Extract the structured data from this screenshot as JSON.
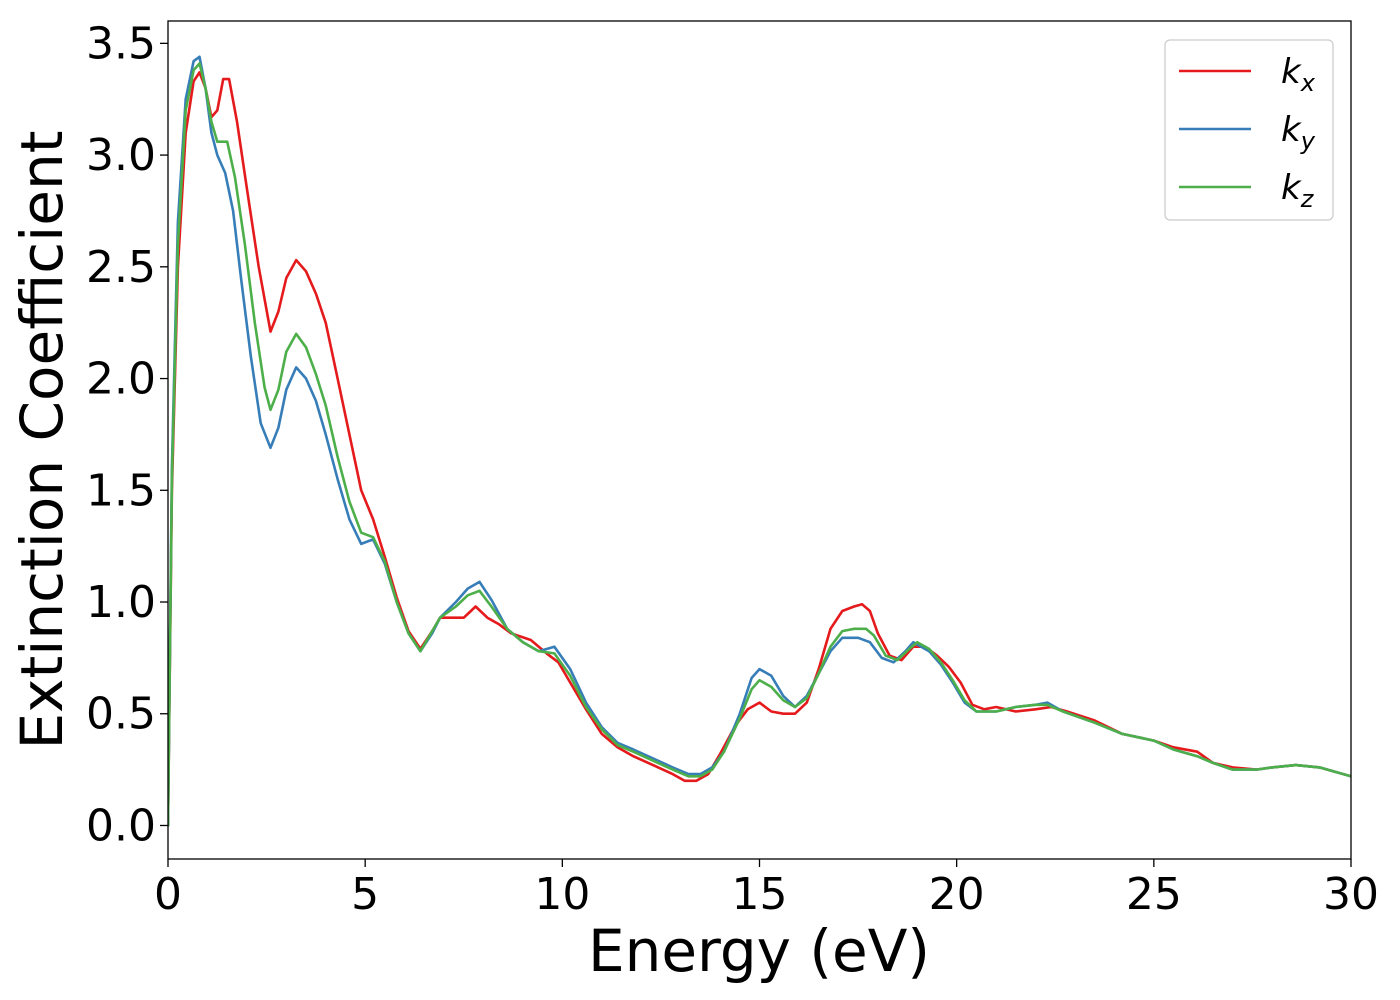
{
  "chart_data": {
    "type": "line",
    "title": "",
    "xlabel": "Energy (eV)",
    "ylabel": "Extinction Coefficient",
    "xlim": [
      0,
      30
    ],
    "ylim": [
      -0.15,
      3.6
    ],
    "xticks": [
      0,
      5,
      10,
      15,
      20,
      25,
      30
    ],
    "xtick_labels": [
      "0",
      "5",
      "10",
      "15",
      "20",
      "25",
      "30"
    ],
    "yticks": [
      0.0,
      0.5,
      1.0,
      1.5,
      2.0,
      2.5,
      3.0,
      3.5
    ],
    "ytick_labels": [
      "0.0",
      "0.5",
      "1.0",
      "1.5",
      "2.0",
      "2.5",
      "3.0",
      "3.5"
    ],
    "grid": false,
    "legend_position": "top-right",
    "series": [
      {
        "name": "k",
        "subscript": "x",
        "color": "#e41a1c",
        "points": [
          [
            0,
            0
          ],
          [
            0.1,
            1.5
          ],
          [
            0.25,
            2.5
          ],
          [
            0.45,
            3.1
          ],
          [
            0.65,
            3.33
          ],
          [
            0.8,
            3.37
          ],
          [
            0.95,
            3.3
          ],
          [
            1.1,
            3.17
          ],
          [
            1.25,
            3.2
          ],
          [
            1.4,
            3.34
          ],
          [
            1.55,
            3.34
          ],
          [
            1.75,
            3.15
          ],
          [
            2.0,
            2.85
          ],
          [
            2.3,
            2.5
          ],
          [
            2.6,
            2.21
          ],
          [
            2.8,
            2.3
          ],
          [
            3.0,
            2.45
          ],
          [
            3.25,
            2.53
          ],
          [
            3.5,
            2.48
          ],
          [
            3.75,
            2.38
          ],
          [
            4.0,
            2.25
          ],
          [
            4.3,
            2.0
          ],
          [
            4.6,
            1.75
          ],
          [
            4.9,
            1.5
          ],
          [
            5.2,
            1.37
          ],
          [
            5.5,
            1.2
          ],
          [
            5.8,
            1.02
          ],
          [
            6.1,
            0.87
          ],
          [
            6.4,
            0.79
          ],
          [
            6.7,
            0.87
          ],
          [
            6.9,
            0.93
          ],
          [
            7.3,
            0.93
          ],
          [
            7.5,
            0.93
          ],
          [
            7.8,
            0.98
          ],
          [
            8.1,
            0.93
          ],
          [
            8.4,
            0.9
          ],
          [
            8.7,
            0.86
          ],
          [
            9.2,
            0.83
          ],
          [
            9.6,
            0.77
          ],
          [
            9.9,
            0.73
          ],
          [
            10.2,
            0.64
          ],
          [
            10.6,
            0.52
          ],
          [
            11.0,
            0.41
          ],
          [
            11.4,
            0.35
          ],
          [
            11.8,
            0.31
          ],
          [
            12.3,
            0.27
          ],
          [
            12.8,
            0.23
          ],
          [
            13.1,
            0.2
          ],
          [
            13.4,
            0.2
          ],
          [
            13.7,
            0.23
          ],
          [
            14.0,
            0.32
          ],
          [
            14.4,
            0.45
          ],
          [
            14.7,
            0.52
          ],
          [
            15.0,
            0.55
          ],
          [
            15.3,
            0.51
          ],
          [
            15.6,
            0.5
          ],
          [
            15.9,
            0.5
          ],
          [
            16.2,
            0.55
          ],
          [
            16.5,
            0.7
          ],
          [
            16.8,
            0.88
          ],
          [
            17.1,
            0.96
          ],
          [
            17.4,
            0.98
          ],
          [
            17.6,
            0.99
          ],
          [
            17.8,
            0.96
          ],
          [
            18.0,
            0.86
          ],
          [
            18.3,
            0.76
          ],
          [
            18.6,
            0.74
          ],
          [
            18.9,
            0.8
          ],
          [
            19.2,
            0.8
          ],
          [
            19.5,
            0.76
          ],
          [
            19.8,
            0.71
          ],
          [
            20.1,
            0.64
          ],
          [
            20.4,
            0.54
          ],
          [
            20.7,
            0.52
          ],
          [
            21.0,
            0.53
          ],
          [
            21.5,
            0.51
          ],
          [
            22.0,
            0.52
          ],
          [
            22.4,
            0.53
          ],
          [
            22.8,
            0.51
          ],
          [
            23.5,
            0.47
          ],
          [
            24.2,
            0.41
          ],
          [
            25.0,
            0.38
          ],
          [
            25.5,
            0.35
          ],
          [
            26.1,
            0.33
          ],
          [
            26.5,
            0.28
          ],
          [
            27.0,
            0.26
          ],
          [
            27.6,
            0.25
          ],
          [
            28.0,
            0.26
          ],
          [
            28.6,
            0.27
          ],
          [
            29.2,
            0.26
          ],
          [
            30.0,
            0.22
          ]
        ]
      },
      {
        "name": "k",
        "subscript": "y",
        "color": "#377eb8",
        "points": [
          [
            0,
            0
          ],
          [
            0.1,
            1.6
          ],
          [
            0.25,
            2.7
          ],
          [
            0.45,
            3.25
          ],
          [
            0.65,
            3.42
          ],
          [
            0.8,
            3.44
          ],
          [
            0.95,
            3.3
          ],
          [
            1.1,
            3.1
          ],
          [
            1.25,
            3.0
          ],
          [
            1.45,
            2.92
          ],
          [
            1.65,
            2.75
          ],
          [
            1.85,
            2.45
          ],
          [
            2.1,
            2.1
          ],
          [
            2.35,
            1.8
          ],
          [
            2.6,
            1.69
          ],
          [
            2.8,
            1.78
          ],
          [
            3.0,
            1.95
          ],
          [
            3.25,
            2.05
          ],
          [
            3.5,
            2.0
          ],
          [
            3.75,
            1.9
          ],
          [
            4.0,
            1.75
          ],
          [
            4.3,
            1.55
          ],
          [
            4.6,
            1.37
          ],
          [
            4.9,
            1.26
          ],
          [
            5.2,
            1.28
          ],
          [
            5.5,
            1.17
          ],
          [
            5.8,
            1.0
          ],
          [
            6.1,
            0.86
          ],
          [
            6.4,
            0.78
          ],
          [
            6.7,
            0.86
          ],
          [
            6.9,
            0.93
          ],
          [
            7.3,
            1.0
          ],
          [
            7.6,
            1.06
          ],
          [
            7.9,
            1.09
          ],
          [
            8.2,
            1.01
          ],
          [
            8.6,
            0.88
          ],
          [
            9.0,
            0.82
          ],
          [
            9.4,
            0.78
          ],
          [
            9.8,
            0.8
          ],
          [
            10.2,
            0.7
          ],
          [
            10.6,
            0.55
          ],
          [
            11.0,
            0.44
          ],
          [
            11.4,
            0.37
          ],
          [
            11.8,
            0.34
          ],
          [
            12.3,
            0.3
          ],
          [
            12.8,
            0.26
          ],
          [
            13.2,
            0.23
          ],
          [
            13.5,
            0.23
          ],
          [
            13.8,
            0.26
          ],
          [
            14.1,
            0.33
          ],
          [
            14.5,
            0.5
          ],
          [
            14.8,
            0.66
          ],
          [
            15.0,
            0.7
          ],
          [
            15.3,
            0.67
          ],
          [
            15.6,
            0.58
          ],
          [
            15.9,
            0.53
          ],
          [
            16.2,
            0.58
          ],
          [
            16.5,
            0.68
          ],
          [
            16.8,
            0.78
          ],
          [
            17.1,
            0.84
          ],
          [
            17.5,
            0.84
          ],
          [
            17.8,
            0.82
          ],
          [
            18.1,
            0.75
          ],
          [
            18.4,
            0.73
          ],
          [
            18.7,
            0.78
          ],
          [
            18.9,
            0.82
          ],
          [
            19.3,
            0.78
          ],
          [
            19.6,
            0.72
          ],
          [
            19.9,
            0.64
          ],
          [
            20.2,
            0.55
          ],
          [
            20.5,
            0.51
          ],
          [
            21.0,
            0.51
          ],
          [
            21.5,
            0.53
          ],
          [
            22.0,
            0.54
          ],
          [
            22.3,
            0.55
          ],
          [
            22.7,
            0.51
          ],
          [
            23.5,
            0.46
          ],
          [
            24.2,
            0.41
          ],
          [
            25.0,
            0.38
          ],
          [
            25.5,
            0.34
          ],
          [
            26.1,
            0.31
          ],
          [
            26.5,
            0.28
          ],
          [
            27.0,
            0.25
          ],
          [
            27.6,
            0.25
          ],
          [
            28.0,
            0.26
          ],
          [
            28.6,
            0.27
          ],
          [
            29.2,
            0.26
          ],
          [
            30.0,
            0.22
          ]
        ]
      },
      {
        "name": "k",
        "subscript": "z",
        "color": "#4daf4a",
        "points": [
          [
            0,
            0
          ],
          [
            0.1,
            1.55
          ],
          [
            0.25,
            2.6
          ],
          [
            0.45,
            3.2
          ],
          [
            0.65,
            3.38
          ],
          [
            0.8,
            3.41
          ],
          [
            0.95,
            3.3
          ],
          [
            1.1,
            3.15
          ],
          [
            1.25,
            3.06
          ],
          [
            1.5,
            3.06
          ],
          [
            1.7,
            2.9
          ],
          [
            1.95,
            2.6
          ],
          [
            2.2,
            2.25
          ],
          [
            2.45,
            1.96
          ],
          [
            2.6,
            1.86
          ],
          [
            2.8,
            1.95
          ],
          [
            3.0,
            2.12
          ],
          [
            3.25,
            2.2
          ],
          [
            3.5,
            2.14
          ],
          [
            3.75,
            2.02
          ],
          [
            4.0,
            1.88
          ],
          [
            4.3,
            1.65
          ],
          [
            4.6,
            1.45
          ],
          [
            4.9,
            1.31
          ],
          [
            5.2,
            1.29
          ],
          [
            5.5,
            1.18
          ],
          [
            5.8,
            1.0
          ],
          [
            6.1,
            0.86
          ],
          [
            6.4,
            0.78
          ],
          [
            6.7,
            0.87
          ],
          [
            6.9,
            0.93
          ],
          [
            7.3,
            0.98
          ],
          [
            7.6,
            1.03
          ],
          [
            7.9,
            1.05
          ],
          [
            8.2,
            0.98
          ],
          [
            8.6,
            0.88
          ],
          [
            9.0,
            0.82
          ],
          [
            9.4,
            0.78
          ],
          [
            9.8,
            0.77
          ],
          [
            10.2,
            0.67
          ],
          [
            10.6,
            0.53
          ],
          [
            11.0,
            0.43
          ],
          [
            11.4,
            0.36
          ],
          [
            11.8,
            0.33
          ],
          [
            12.3,
            0.29
          ],
          [
            12.8,
            0.25
          ],
          [
            13.2,
            0.22
          ],
          [
            13.5,
            0.22
          ],
          [
            13.8,
            0.25
          ],
          [
            14.1,
            0.33
          ],
          [
            14.5,
            0.48
          ],
          [
            14.8,
            0.61
          ],
          [
            15.0,
            0.65
          ],
          [
            15.3,
            0.62
          ],
          [
            15.6,
            0.56
          ],
          [
            15.9,
            0.53
          ],
          [
            16.2,
            0.57
          ],
          [
            16.5,
            0.68
          ],
          [
            16.8,
            0.8
          ],
          [
            17.1,
            0.87
          ],
          [
            17.4,
            0.88
          ],
          [
            17.7,
            0.88
          ],
          [
            17.9,
            0.85
          ],
          [
            18.2,
            0.76
          ],
          [
            18.5,
            0.74
          ],
          [
            18.8,
            0.79
          ],
          [
            19.0,
            0.82
          ],
          [
            19.3,
            0.79
          ],
          [
            19.6,
            0.73
          ],
          [
            19.9,
            0.65
          ],
          [
            20.2,
            0.56
          ],
          [
            20.5,
            0.51
          ],
          [
            21.0,
            0.51
          ],
          [
            21.5,
            0.53
          ],
          [
            22.0,
            0.54
          ],
          [
            22.3,
            0.54
          ],
          [
            22.7,
            0.51
          ],
          [
            23.5,
            0.46
          ],
          [
            24.2,
            0.41
          ],
          [
            25.0,
            0.38
          ],
          [
            25.5,
            0.34
          ],
          [
            26.1,
            0.31
          ],
          [
            26.5,
            0.28
          ],
          [
            27.0,
            0.25
          ],
          [
            27.6,
            0.25
          ],
          [
            28.0,
            0.26
          ],
          [
            28.6,
            0.27
          ],
          [
            29.2,
            0.26
          ],
          [
            30.0,
            0.22
          ]
        ]
      }
    ]
  }
}
